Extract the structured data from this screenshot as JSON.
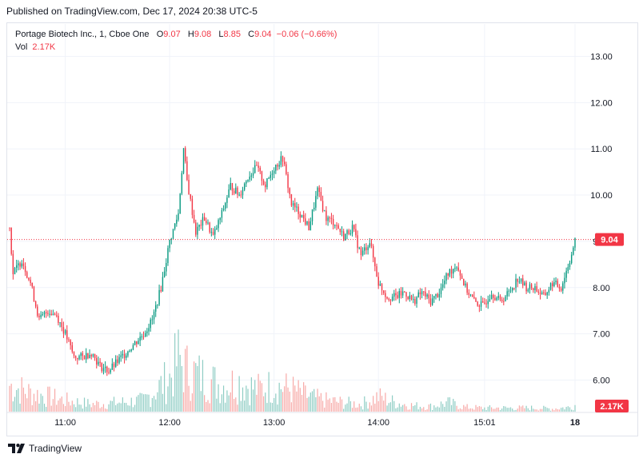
{
  "published": "Published on TradingView.com, Dec 17, 2024 20:38 UTC-5",
  "legend": {
    "symbol": "Portage Biotech Inc., 1, Cboe One",
    "o_label": "O",
    "o_value": "9.07",
    "h_label": "H",
    "h_value": "9.08",
    "l_label": "L",
    "l_value": "8.85",
    "c_label": "C",
    "c_value": "9.04",
    "change": "−0.06 (−0.66%)",
    "vol_label": "Vol",
    "vol_value": "2.17K"
  },
  "footer": {
    "brand": "TradingView"
  },
  "colors": {
    "up": "#089981",
    "down": "#f23645",
    "vol_up": "#8fcdc4",
    "vol_down": "#f7a9a7",
    "grid": "#f0f3fa"
  },
  "chart_data": {
    "type": "candlestick",
    "y_ticks": [
      "6.00",
      "7.00",
      "8.00",
      "9.00",
      "10.00",
      "11.00",
      "12.00",
      "13.00"
    ],
    "ylim": [
      5.3,
      13.25
    ],
    "x_ticks": [
      "11:00",
      "12:00",
      "13:00",
      "14:00",
      "15:01",
      "18"
    ],
    "last_price": "9.04",
    "last_volume": "2.17K",
    "price_keypoints": [
      [
        "10:28",
        9.3
      ],
      [
        "10:30",
        8.3
      ],
      [
        "10:35",
        8.6
      ],
      [
        "10:40",
        8.1
      ],
      [
        "10:45",
        7.3
      ],
      [
        "10:50",
        7.5
      ],
      [
        "10:55",
        7.4
      ],
      [
        "11:00",
        7.0
      ],
      [
        "11:05",
        6.5
      ],
      [
        "11:10",
        6.5
      ],
      [
        "11:15",
        6.6
      ],
      [
        "11:20",
        6.3
      ],
      [
        "11:25",
        6.2
      ],
      [
        "11:30",
        6.4
      ],
      [
        "11:35",
        6.6
      ],
      [
        "11:40",
        6.8
      ],
      [
        "11:45",
        7.0
      ],
      [
        "11:50",
        7.3
      ],
      [
        "11:55",
        8.0
      ],
      [
        "12:00",
        9.0
      ],
      [
        "12:05",
        9.6
      ],
      [
        "12:08",
        11.0
      ],
      [
        "12:10",
        10.3
      ],
      [
        "12:15",
        9.2
      ],
      [
        "12:20",
        9.5
      ],
      [
        "12:25",
        9.1
      ],
      [
        "12:30",
        9.6
      ],
      [
        "12:35",
        10.2
      ],
      [
        "12:40",
        10.0
      ],
      [
        "12:45",
        10.4
      ],
      [
        "12:50",
        10.6
      ],
      [
        "12:55",
        10.2
      ],
      [
        "13:00",
        10.6
      ],
      [
        "13:05",
        10.8
      ],
      [
        "13:10",
        9.8
      ],
      [
        "13:15",
        9.6
      ],
      [
        "13:20",
        9.3
      ],
      [
        "13:25",
        10.1
      ],
      [
        "13:30",
        9.5
      ],
      [
        "13:35",
        9.4
      ],
      [
        "13:40",
        9.1
      ],
      [
        "13:45",
        9.3
      ],
      [
        "13:50",
        8.7
      ],
      [
        "13:55",
        9.0
      ],
      [
        "14:00",
        8.1
      ],
      [
        "14:05",
        7.8
      ],
      [
        "14:10",
        7.8
      ],
      [
        "14:15",
        7.9
      ],
      [
        "14:20",
        7.7
      ],
      [
        "14:25",
        7.9
      ],
      [
        "14:30",
        7.7
      ],
      [
        "14:35",
        7.9
      ],
      [
        "14:40",
        8.3
      ],
      [
        "14:45",
        8.5
      ],
      [
        "14:50",
        8.0
      ],
      [
        "14:55",
        7.7
      ],
      [
        "15:00",
        7.6
      ],
      [
        "15:05",
        7.9
      ],
      [
        "15:10",
        7.7
      ],
      [
        "15:15",
        7.9
      ],
      [
        "15:20",
        8.2
      ],
      [
        "15:25",
        8.0
      ],
      [
        "15:30",
        8.0
      ],
      [
        "15:35",
        7.8
      ],
      [
        "15:40",
        8.1
      ],
      [
        "15:45",
        8.0
      ],
      [
        "15:50",
        8.6
      ],
      [
        "15:53",
        9.0
      ]
    ],
    "volume_keypoints": [
      [
        "10:28",
        0.35
      ],
      [
        "10:40",
        0.25
      ],
      [
        "10:50",
        0.2
      ],
      [
        "11:00",
        0.15
      ],
      [
        "11:15",
        0.1
      ],
      [
        "11:30",
        0.12
      ],
      [
        "11:45",
        0.15
      ],
      [
        "12:00",
        0.45
      ],
      [
        "12:05",
        0.7
      ],
      [
        "12:10",
        0.55
      ],
      [
        "12:20",
        0.45
      ],
      [
        "12:30",
        0.35
      ],
      [
        "12:40",
        0.4
      ],
      [
        "12:50",
        0.3
      ],
      [
        "13:00",
        0.35
      ],
      [
        "13:10",
        0.3
      ],
      [
        "13:20",
        0.2
      ],
      [
        "13:30",
        0.15
      ],
      [
        "13:40",
        0.12
      ],
      [
        "13:50",
        0.1
      ],
      [
        "14:00",
        0.2
      ],
      [
        "14:10",
        0.12
      ],
      [
        "14:20",
        0.08
      ],
      [
        "14:30",
        0.07
      ],
      [
        "14:40",
        0.12
      ],
      [
        "14:50",
        0.06
      ],
      [
        "15:00",
        0.05
      ],
      [
        "15:10",
        0.05
      ],
      [
        "15:20",
        0.05
      ],
      [
        "15:30",
        0.05
      ],
      [
        "15:40",
        0.04
      ],
      [
        "15:50",
        0.06
      ],
      [
        "15:53",
        0.09
      ]
    ]
  }
}
